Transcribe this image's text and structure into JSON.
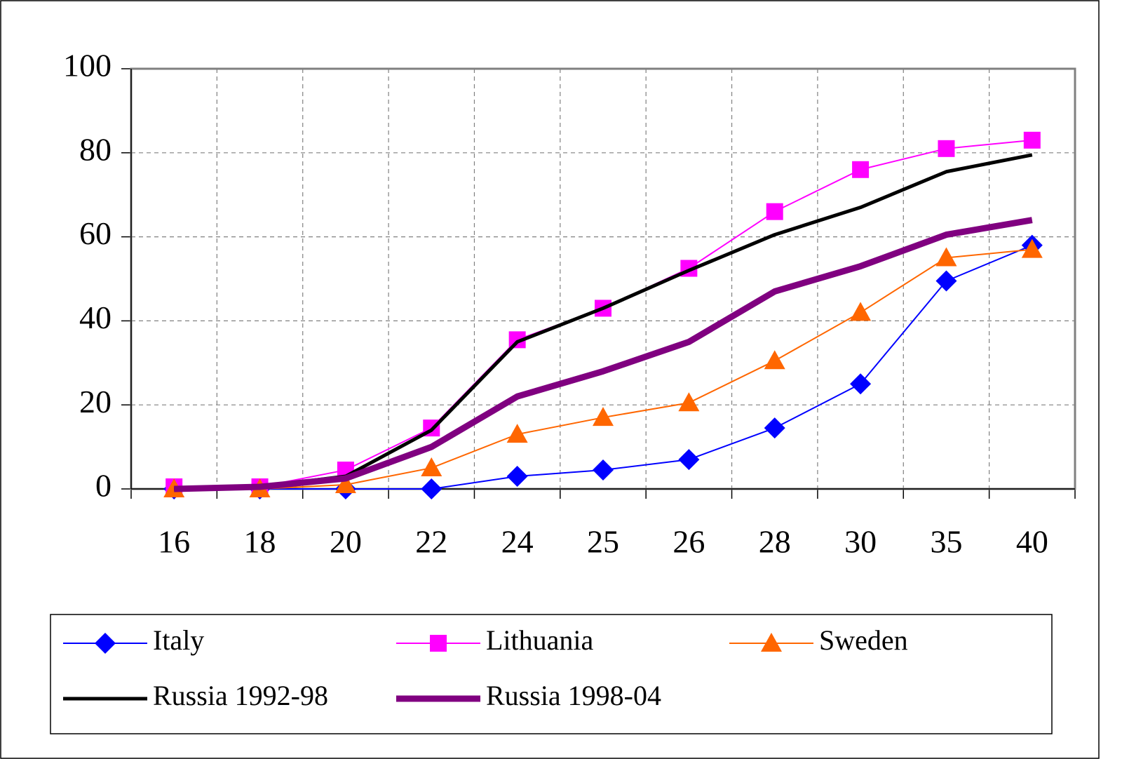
{
  "chart_data": {
    "type": "line",
    "categories": [
      "16",
      "18",
      "20",
      "22",
      "24",
      "25",
      "26",
      "28",
      "30",
      "35",
      "40"
    ],
    "series": [
      {
        "name": "Italy",
        "color": "#0000ff",
        "marker": "diamond",
        "line_width": 2,
        "values": [
          0,
          0,
          0,
          0,
          3,
          4.5,
          7,
          14.5,
          25,
          49.5,
          58
        ]
      },
      {
        "name": "Lithuania",
        "color": "#ff00ff",
        "marker": "square",
        "line_width": 2,
        "values": [
          0.5,
          0.5,
          4.5,
          14.5,
          35.5,
          43,
          52.5,
          66,
          76,
          81,
          83
        ]
      },
      {
        "name": "Sweden",
        "color": "#ff6600",
        "marker": "triangle",
        "line_width": 2,
        "values": [
          0,
          0,
          1,
          5,
          13,
          17,
          20.5,
          30.5,
          42,
          55,
          57
        ]
      },
      {
        "name": "Russia 1992-98",
        "color": "#000000",
        "marker": "none",
        "line_width": 5,
        "values": [
          0,
          0.5,
          3,
          14,
          35,
          43,
          52,
          60.5,
          67,
          75.5,
          79.5
        ]
      },
      {
        "name": "Russia 1998-04",
        "color": "#800080",
        "marker": "none",
        "line_width": 9,
        "values": [
          0,
          0.5,
          2.5,
          10,
          22,
          28,
          35,
          47,
          53,
          60.5,
          64
        ]
      }
    ],
    "ylim": [
      0,
      100
    ],
    "yticks": [
      0,
      20,
      40,
      60,
      80,
      100
    ],
    "grid": true,
    "legend": "bottom"
  }
}
